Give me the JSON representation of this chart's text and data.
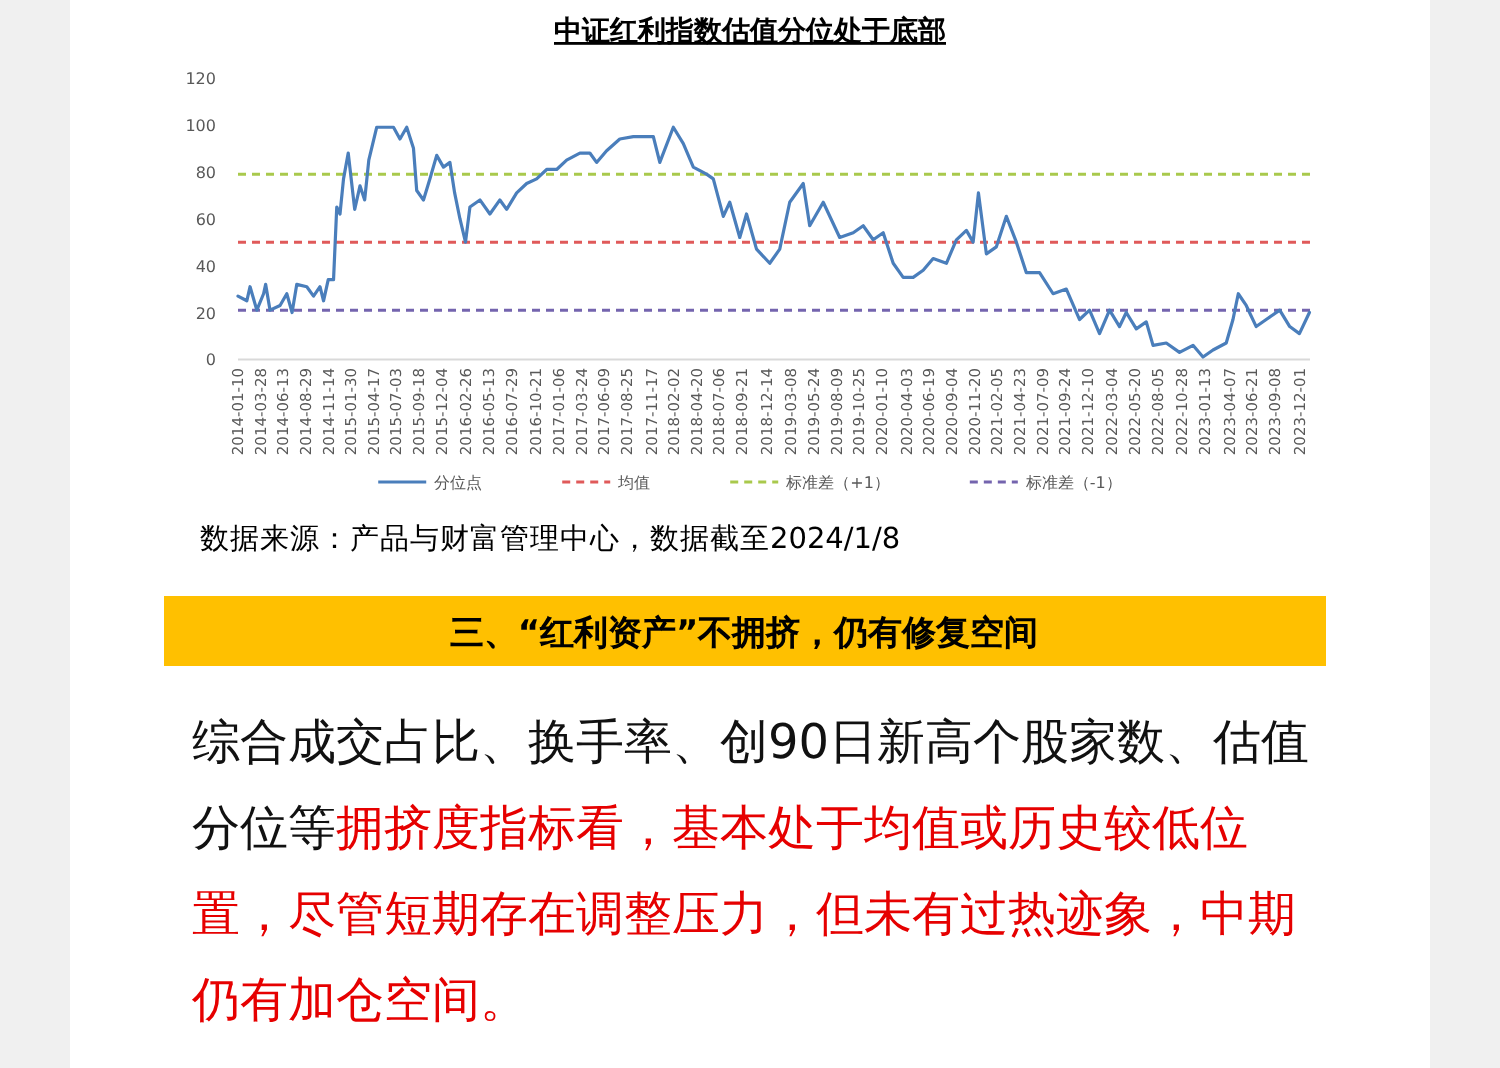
{
  "chart_data": {
    "type": "line",
    "title": "中证红利指数估值分位处于底部",
    "x": [
      "2014-01-10",
      "2014-02-09",
      "2014-02-20",
      "2014-03-15",
      "2014-04-07",
      "2014-04-14",
      "2014-04-29",
      "2014-06-02",
      "2014-06-25",
      "2014-07-13",
      "2014-07-29",
      "2014-09-01",
      "2014-09-24",
      "2014-10-16",
      "2014-10-28",
      "2014-11-13",
      "2014-12-01",
      "2014-12-12",
      "2014-12-23",
      "2015-01-04",
      "2015-01-20",
      "2015-02-11",
      "2015-03-01",
      "2015-03-17",
      "2015-03-31",
      "2015-04-27",
      "2015-05-31",
      "2015-06-23",
      "2015-07-15",
      "2015-08-07",
      "2015-08-30",
      "2015-09-10",
      "2015-10-03",
      "2015-10-25",
      "2015-11-17",
      "2015-12-10",
      "2016-01-01",
      "2016-01-17",
      "2016-02-04",
      "2016-02-23",
      "2016-03-09",
      "2016-04-12",
      "2016-05-16",
      "2016-06-19",
      "2016-07-12",
      "2016-08-15",
      "2016-09-18",
      "2016-10-22",
      "2016-11-25",
      "2016-12-29",
      "2017-02-01",
      "2017-03-18",
      "2017-04-21",
      "2017-05-14",
      "2017-06-17",
      "2017-08-01",
      "2017-09-16",
      "2017-11-23",
      "2017-12-15",
      "2018-01-30",
      "2018-03-05",
      "2018-04-08",
      "2018-05-23",
      "2018-06-15",
      "2018-07-19",
      "2018-08-10",
      "2018-09-13",
      "2018-10-06",
      "2018-11-09",
      "2018-12-24",
      "2019-01-27",
      "2019-03-02",
      "2019-04-17",
      "2019-05-09",
      "2019-06-24",
      "2019-08-19",
      "2019-10-04",
      "2019-11-07",
      "2019-12-11",
      "2020-01-14",
      "2020-02-17",
      "2020-03-22",
      "2020-04-25",
      "2020-05-29",
      "2020-07-02",
      "2020-08-16",
      "2020-09-19",
      "2020-10-23",
      "2020-11-15",
      "2020-12-03",
      "2020-12-30",
      "2021-02-02",
      "2021-03-08",
      "2021-04-11",
      "2021-05-15",
      "2021-06-29",
      "2021-08-14",
      "2021-09-28",
      "2021-11-12",
      "2021-12-16",
      "2022-01-19",
      "2022-02-22",
      "2022-03-28",
      "2022-04-20",
      "2022-05-24",
      "2022-06-27",
      "2022-07-20",
      "2022-09-03",
      "2022-10-18",
      "2022-12-03",
      "2023-01-06",
      "2023-02-09",
      "2023-03-26",
      "2023-04-18",
      "2023-05-06",
      "2023-06-02",
      "2023-07-06",
      "2023-08-09",
      "2023-09-24",
      "2023-10-28",
      "2023-11-30",
      "2024-01-03"
    ],
    "series": [
      {
        "name": "分位点",
        "color": "#4a7ebb",
        "values": [
          27,
          25,
          31,
          21,
          28,
          32,
          21,
          23,
          28,
          20,
          32,
          31,
          27,
          31,
          25,
          34,
          34,
          65,
          62,
          77,
          88,
          64,
          74,
          68,
          85,
          99,
          99,
          99,
          94,
          99,
          90,
          72,
          68,
          77,
          87,
          82,
          84,
          71,
          60,
          50,
          65,
          68,
          62,
          68,
          64,
          71,
          75,
          77,
          81,
          81,
          85,
          88,
          88,
          84,
          89,
          94,
          95,
          95,
          84,
          99,
          92,
          82,
          79,
          77,
          61,
          67,
          52,
          62,
          47,
          41,
          47,
          67,
          75,
          57,
          67,
          52,
          54,
          57,
          51,
          54,
          41,
          35,
          35,
          38,
          43,
          41,
          51,
          55,
          50,
          71,
          45,
          48,
          61,
          50,
          37,
          37,
          28,
          30,
          17,
          21,
          11,
          21,
          14,
          20,
          13,
          16,
          6,
          7,
          3,
          6,
          1,
          4,
          7,
          17,
          28,
          23,
          14,
          17,
          21,
          14,
          11,
          20
        ]
      }
    ],
    "ref_lines": [
      {
        "axis": "y",
        "value": 50,
        "label": "均值",
        "color": "#e05a5a",
        "line_style": "dashed"
      },
      {
        "axis": "y",
        "value": 79,
        "label": "标准差（+1）",
        "color": "#a9c94c",
        "line_style": "dashed"
      },
      {
        "axis": "y",
        "value": 21,
        "label": "标准差（-1）",
        "color": "#7464ae",
        "line_style": "dashed"
      }
    ],
    "xlim": [
      "2014-01-10",
      "2024-01-05"
    ],
    "xticks": [
      "2014-01-10",
      "2014-03-28",
      "2014-06-13",
      "2014-08-29",
      "2014-11-14",
      "2015-01-30",
      "2015-04-17",
      "2015-07-03",
      "2015-09-18",
      "2015-12-04",
      "2016-02-26",
      "2016-05-13",
      "2016-07-29",
      "2016-10-21",
      "2017-01-06",
      "2017-03-24",
      "2017-06-09",
      "2017-08-25",
      "2017-11-17",
      "2018-02-02",
      "2018-04-20",
      "2018-07-06",
      "2018-09-21",
      "2018-12-14",
      "2019-03-08",
      "2019-05-24",
      "2019-08-09",
      "2019-10-25",
      "2020-01-10",
      "2020-04-03",
      "2020-06-19",
      "2020-09-04",
      "2020-11-20",
      "2021-02-05",
      "2021-04-23",
      "2021-07-09",
      "2021-09-24",
      "2021-12-10",
      "2022-03-04",
      "2022-05-20",
      "2022-08-05",
      "2022-10-28",
      "2023-01-13",
      "2023-04-07",
      "2023-06-21",
      "2023-09-08",
      "2023-12-01"
    ],
    "ylim": [
      0,
      120
    ],
    "yticks": [
      0,
      20,
      40,
      60,
      80,
      100,
      120
    ],
    "legend": "bottom",
    "annotations": [
      "数据来源：产品与财富管理中心，数据截至2024/1/8",
      "三、“红利资产”不拥挤，仍有修复空间",
      "综合成交占比、换手率、创90日新高个股家数、估值分位等",
      "拥挤度指标看，基本处于均值或历史较低位置，尽管短期存在调整压力，但未有过热迹象，中期仍有加仓空间。"
    ]
  }
}
